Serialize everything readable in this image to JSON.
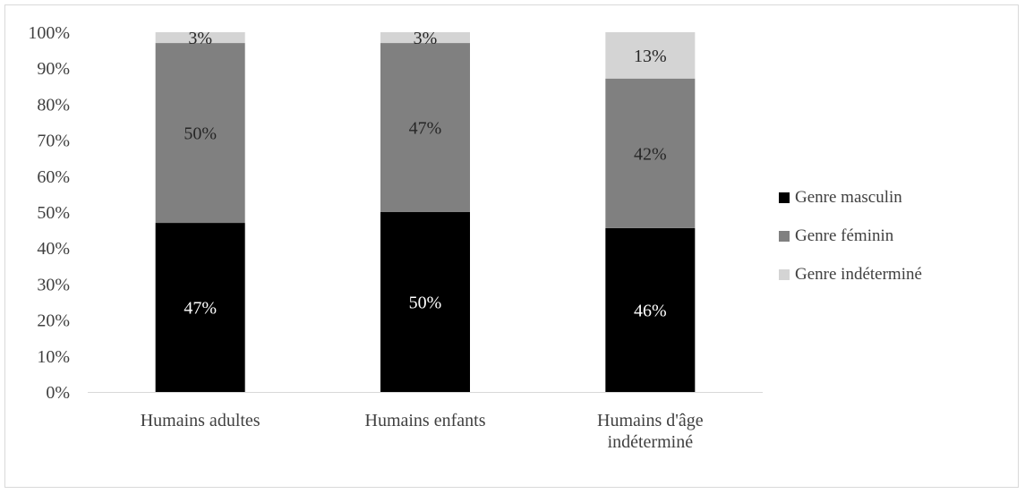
{
  "chart_data": {
    "type": "bar",
    "stacked": true,
    "percent_stacked": true,
    "categories": [
      [
        "Humains adultes"
      ],
      [
        "Humains enfants"
      ],
      [
        "Humains d'âge",
        "indéterminé"
      ]
    ],
    "series": [
      {
        "name": "Genre masculin",
        "values": [
          47,
          50,
          46
        ],
        "labels": [
          "47%",
          "50%",
          "46%"
        ],
        "color": "#000000",
        "label_color": "#ffffff"
      },
      {
        "name": "Genre féminin",
        "values": [
          50,
          47,
          42
        ],
        "labels": [
          "50%",
          "47%",
          "42%"
        ],
        "color": "#808080",
        "label_color": "#262626"
      },
      {
        "name": "Genre indéterminé",
        "values": [
          3,
          3,
          13
        ],
        "labels": [
          "3%",
          "3%",
          "13%"
        ],
        "color": "#d4d4d4",
        "label_color": "#262626"
      }
    ],
    "y_ticks": [
      "0%",
      "10%",
      "20%",
      "30%",
      "40%",
      "50%",
      "60%",
      "70%",
      "80%",
      "90%",
      "100%"
    ],
    "ylim": [
      0,
      100
    ],
    "grid": false,
    "legend_position": "right",
    "title": "",
    "xlabel": "",
    "ylabel": ""
  }
}
